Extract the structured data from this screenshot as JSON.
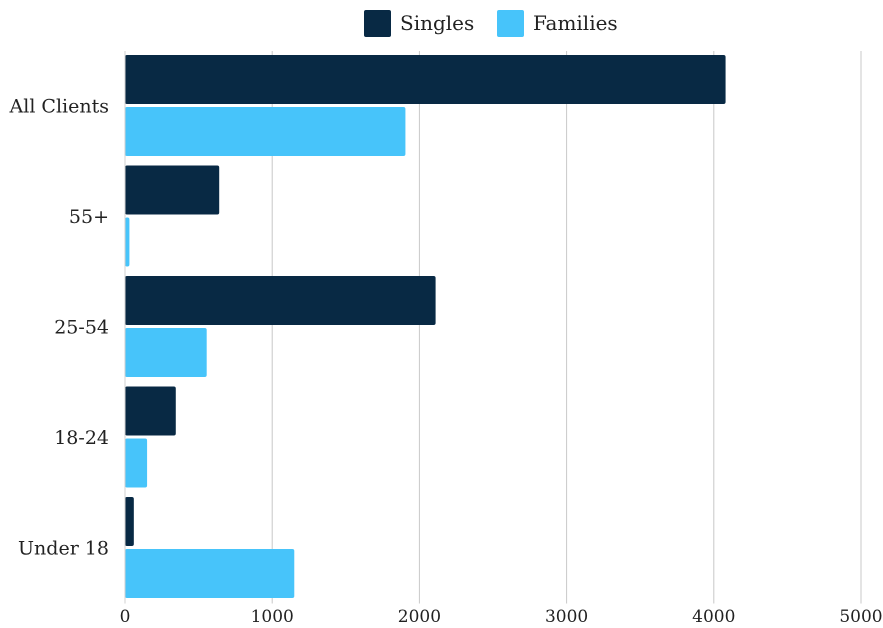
{
  "chart_data": {
    "type": "bar",
    "orientation": "horizontal",
    "categories": [
      "All Clients",
      "55+",
      "25-54",
      "18-24",
      "Under 18"
    ],
    "series": [
      {
        "name": "Singles",
        "color": "#082944",
        "values": [
          4080,
          640,
          2110,
          345,
          60
        ]
      },
      {
        "name": "Families",
        "color": "#47C4FA",
        "values": [
          1905,
          30,
          555,
          150,
          1150
        ]
      }
    ],
    "xlim": [
      0,
      5000
    ],
    "xticks": [
      0,
      1000,
      2000,
      3000,
      4000,
      5000
    ],
    "xtick_labels": [
      "0",
      "1000",
      "2000",
      "3000",
      "4000",
      "5000"
    ],
    "grid": "vertical",
    "legend_position": "top-center",
    "title": "",
    "xlabel": "",
    "ylabel": ""
  }
}
